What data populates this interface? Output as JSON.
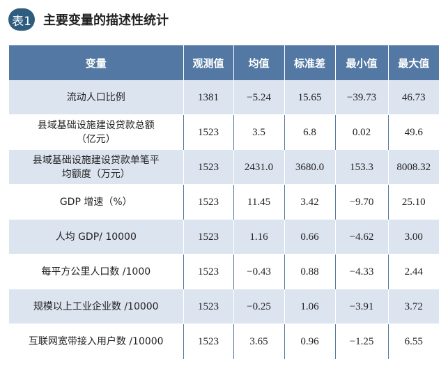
{
  "title": {
    "badge": "表1",
    "text": "主要变量的描述性统计"
  },
  "table": {
    "headers": [
      "变量",
      "观测值",
      "均值",
      "标准差",
      "最小值",
      "最大值"
    ],
    "rows": [
      [
        "流动人口比例",
        "1381",
        "−5.24",
        "15.65",
        "−39.73",
        "46.73"
      ],
      [
        "县域基础设施建设贷款总额\n（亿元）",
        "1523",
        "3.5",
        "6.8",
        "0.02",
        "49.6"
      ],
      [
        "县域基础设施建设贷款单笔平\n均额度（万元）",
        "1523",
        "2431.0",
        "3680.0",
        "153.3",
        "8008.32"
      ],
      [
        "GDP 增速（%）",
        "1523",
        "11.45",
        "3.42",
        "−9.70",
        "25.10"
      ],
      [
        "人均 GDP/ 10000",
        "1523",
        "1.16",
        "0.66",
        "−4.62",
        "3.00"
      ],
      [
        "每平方公里人口数 /1000",
        "1523",
        "−0.43",
        "0.88",
        "−4.33",
        "2.44"
      ],
      [
        "规模以上工业企业数 /10000",
        "1523",
        "−0.25",
        "1.06",
        "−3.91",
        "3.72"
      ],
      [
        "互联网宽带接入用户数 /10000",
        "1523",
        "3.65",
        "0.96",
        "−1.25",
        "6.55"
      ]
    ]
  },
  "colors": {
    "header_bg": "#5378a3",
    "row_shade": "#dce4ef",
    "badge_bg": "#2e5d80"
  }
}
